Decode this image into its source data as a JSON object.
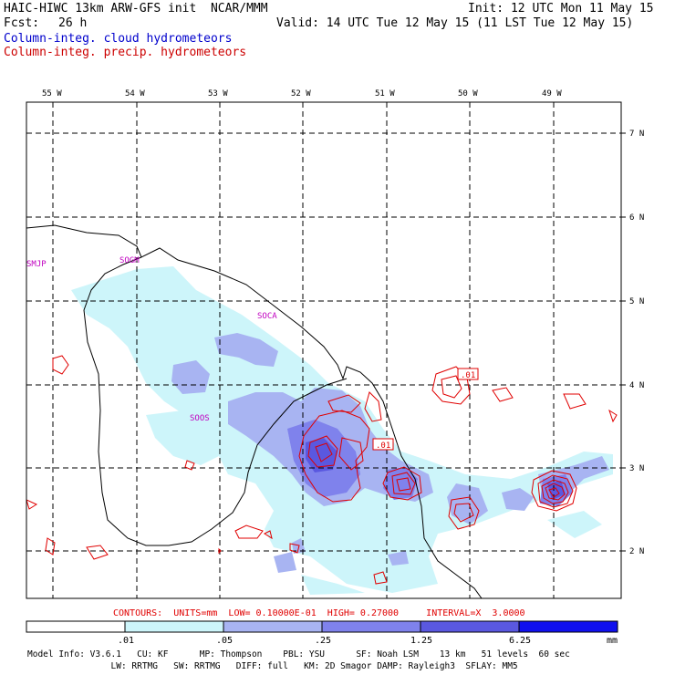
{
  "header": {
    "line1_left": "HAIC-HIWC 13km ARW-GFS init  NCAR/MMM",
    "line1_right": "Init: 12 UTC Mon 11 May 15",
    "fcst_label": "Fcst:",
    "fcst_value": "26 h",
    "valid": "Valid: 14 UTC Tue 12 May 15 (11 LST Tue 12 May 15)",
    "field_cloud": "Column-integ. cloud hydrometeors",
    "field_precip": "Column-integ. precip. hydrometeors"
  },
  "map": {
    "longitude_labels": [
      "55 W",
      "54 W",
      "53 W",
      "52 W",
      "51 W",
      "50 W",
      "49 W"
    ],
    "latitude_labels": [
      "7 N",
      "6 N",
      "5 N",
      "4 N",
      "3 N",
      "2 N"
    ],
    "stations": [
      "SMJP",
      "SOGM",
      "SOCA",
      "SOOS"
    ],
    "contour_labels": [
      ".01",
      ".01"
    ]
  },
  "contours_line": "CONTOURS:  UNITS=mm  LOW= 0.10000E-01  HIGH= 0.27000     INTERVAL=X  3.0000",
  "colorbar": {
    "levels": [
      ".01",
      ".05",
      ".25",
      "1.25",
      "6.25"
    ],
    "units": "mm",
    "colors": [
      "#ffffff",
      "#cdf5fa",
      "#a8b4f2",
      "#7f82ec",
      "#5a58e0",
      "#3a30ee",
      "#1010ee"
    ]
  },
  "model_info": {
    "line1": "Model Info: V3.6.1   CU: KF      MP: Thompson    PBL: YSU      SF: Noah LSM    13 km   51 levels  60 sec",
    "line2": "                LW: RRTMG   SW: RRTMG   DIFF: full   KM: 2D Smagor DAMP: Rayleigh3  SFLAY: MM5"
  },
  "colors": {
    "cloud_text": "#0000cc",
    "precip_text": "#cc0000",
    "contour": "#e00000",
    "station": "#c000c0"
  }
}
